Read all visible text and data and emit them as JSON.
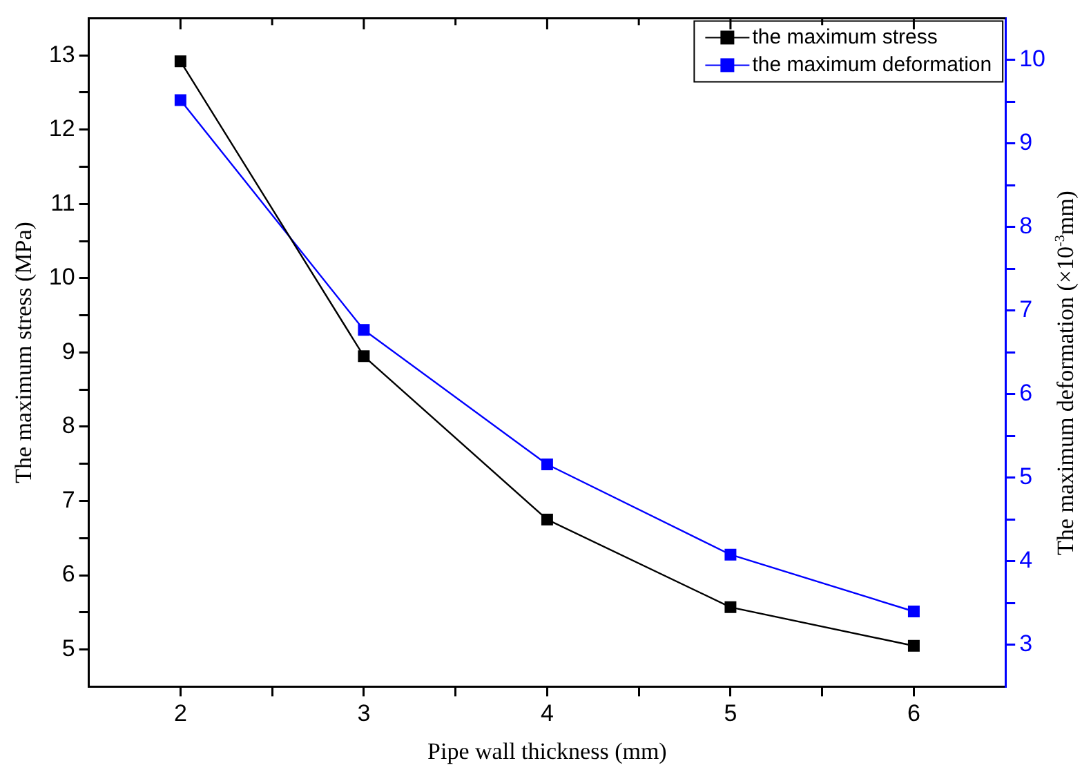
{
  "chart_data": {
    "type": "line",
    "xlabel": "Pipe wall thickness (mm)",
    "ylabel": "The maximum stress (MPa)",
    "y2label": "The maximum deformation (×10$^{-3}$mm)",
    "x": [
      2,
      3,
      4,
      5,
      6
    ],
    "xlim": [
      1.5,
      6.5
    ],
    "xticks": [
      2,
      {
        "value": 2.5,
        "label": null
      },
      3,
      {
        "value": 3.5,
        "label": null
      },
      4,
      {
        "value": 4.5,
        "label": null
      },
      5,
      {
        "value": 5.5,
        "label": null
      },
      6
    ],
    "ylim": [
      4.5,
      13.5
    ],
    "yticks": [
      5,
      {
        "value": 5.5,
        "label": null
      },
      6,
      {
        "value": 6.5,
        "label": null
      },
      7,
      {
        "value": 7.5,
        "label": null
      },
      8,
      {
        "value": 8.5,
        "label": null
      },
      9,
      {
        "value": 9.5,
        "label": null
      },
      10,
      {
        "value": 10.5,
        "label": null
      },
      11,
      {
        "value": 11.5,
        "label": null
      },
      12,
      {
        "value": 12.5,
        "label": null
      },
      13
    ],
    "y2lim": [
      2.5,
      10.5
    ],
    "y2ticks": [
      3,
      {
        "value": 3.5,
        "label": null
      },
      4,
      {
        "value": 4.5,
        "label": null
      },
      5,
      {
        "value": 5.5,
        "label": null
      },
      6,
      {
        "value": 6.5,
        "label": null
      },
      7,
      {
        "value": 7.5,
        "label": null
      },
      8,
      {
        "value": 8.5,
        "label": null
      },
      9,
      {
        "value": 9.5,
        "label": null
      },
      10
    ],
    "series": [
      {
        "name": "the maximum stress",
        "color": "#000000",
        "values": [
          12.92,
          8.95,
          6.75,
          5.57,
          5.05
        ]
      },
      {
        "name": "the maximum deformation",
        "color": "#0000ff",
        "axis": "y2",
        "values": [
          9.52,
          6.77,
          5.16,
          4.08,
          3.4
        ]
      }
    ],
    "marker": "square",
    "line_style": "solid",
    "grid": false,
    "legend": "top right"
  }
}
